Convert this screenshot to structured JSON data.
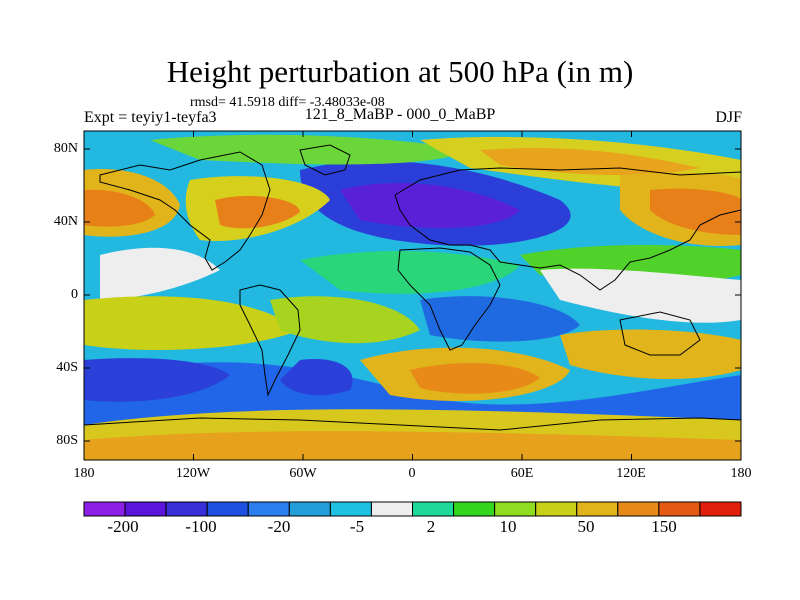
{
  "title": "Height perturbation at 500 hPa (in m)",
  "stats": "rmsd= 41.5918 diff= -3.48033e-08",
  "experiment": "Expt = teyiy1-teyfa3",
  "period": "121_8_MaBP - 000_0_MaBP",
  "season": "DJF",
  "map": {
    "lat_ticks": [
      "80N",
      "40N",
      "0",
      "40S",
      "80S"
    ],
    "lon_ticks": [
      "180",
      "120W",
      "60W",
      "0",
      "60E",
      "120E",
      "180"
    ],
    "lon_range": [
      -180,
      180
    ],
    "lat_range": [
      -90,
      90
    ]
  },
  "colorbar": {
    "labels": [
      "-200",
      "-100",
      "-20",
      "-5",
      "2",
      "10",
      "50",
      "150"
    ],
    "colors": [
      "#8c1ee6",
      "#5a14dc",
      "#3a2fd9",
      "#1f4fe0",
      "#2d7ff0",
      "#229fd8",
      "#1ec1e0",
      "#eeeeee",
      "#1ed99a",
      "#33d61e",
      "#8fdc20",
      "#c8d018",
      "#e0b41a",
      "#e88a18",
      "#e45a14",
      "#e0200c"
    ]
  }
}
